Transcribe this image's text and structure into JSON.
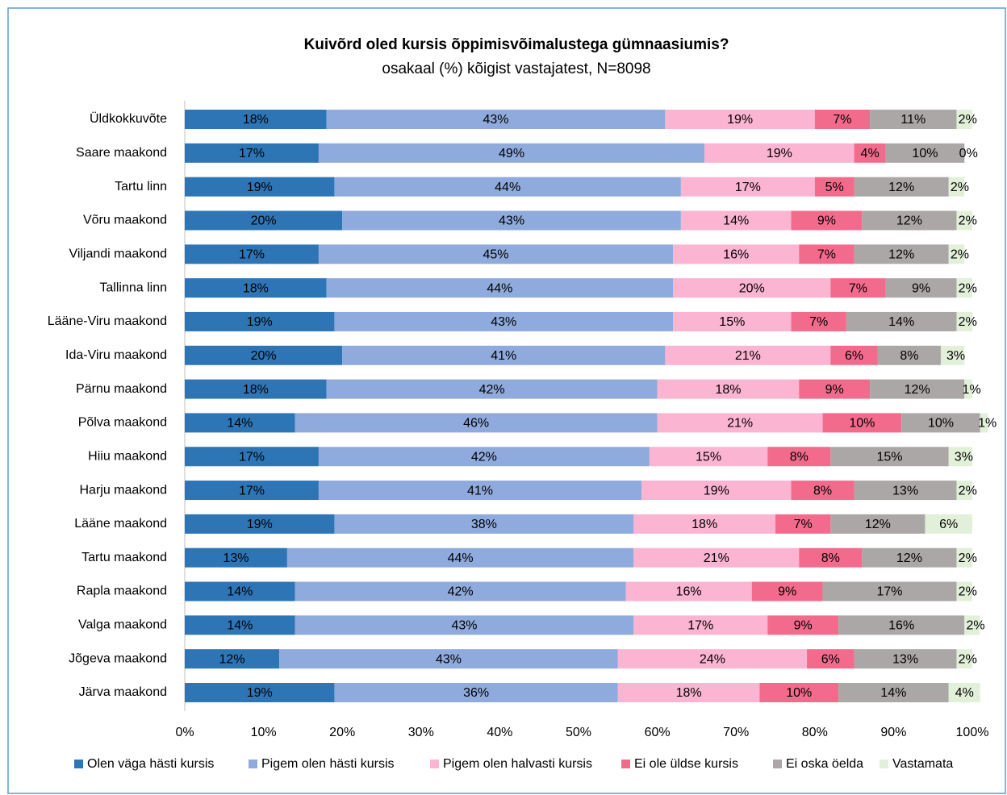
{
  "chart_data": {
    "type": "stacked_bar_horizontal",
    "title": "Kuivõrd oled kursis õppimisvõimalustega gümnaasiumis?",
    "subtitle": "osakaal (%) kõigist vastajatest, N=8098",
    "categories": [
      "Üldkokkuvõte",
      "Saare maakond",
      "Tartu linn",
      "Võru maakond",
      "Viljandi maakond",
      "Tallinna linn",
      "Lääne-Viru maakond",
      "Ida-Viru maakond",
      "Pärnu maakond",
      "Põlva maakond",
      "Hiiu maakond",
      "Harju maakond",
      "Lääne maakond",
      "Tartu maakond",
      "Rapla maakond",
      "Valga maakond",
      "Jõgeva maakond",
      "Järva maakond"
    ],
    "series": [
      {
        "name": "Olen väga hästi kursis",
        "color": "#2e75b6",
        "label_color": "#ffffff",
        "values": [
          18,
          17,
          19,
          20,
          17,
          18,
          19,
          20,
          18,
          14,
          17,
          17,
          19,
          13,
          14,
          14,
          12,
          19
        ],
        "value_labels": [
          "18%",
          "17%",
          "19%",
          "20%",
          "17%",
          "18%",
          "19%",
          "20%",
          "18%",
          "14%",
          "17%",
          "17%",
          "19%",
          "13%",
          "14%",
          "14%",
          "12%",
          "19%"
        ]
      },
      {
        "name": "Pigem olen hästi kursis",
        "color": "#8faadc",
        "label_color": "#000000",
        "values": [
          43,
          49,
          44,
          43,
          45,
          44,
          43,
          41,
          42,
          46,
          42,
          41,
          38,
          44,
          42,
          43,
          43,
          36
        ],
        "value_labels": [
          "43%",
          "49%",
          "44%",
          "43%",
          "45%",
          "44%",
          "43%",
          "41%",
          "42%",
          "46%",
          "42%",
          "41%",
          "38%",
          "44%",
          "42%",
          "43%",
          "43%",
          "36%"
        ]
      },
      {
        "name": "Pigem olen halvasti kursis",
        "color": "#fbb4d1",
        "label_color": "#000000",
        "values": [
          19,
          19,
          17,
          14,
          16,
          20,
          15,
          21,
          18,
          21,
          15,
          19,
          18,
          21,
          16,
          17,
          24,
          18
        ],
        "value_labels": [
          "19%",
          "19%",
          "17%",
          "14%",
          "16%",
          "20%",
          "15%",
          "21%",
          "18%",
          "21%",
          "15%",
          "19%",
          "18%",
          "21%",
          "16%",
          "17%",
          "24%",
          "18%"
        ]
      },
      {
        "name": "Ei ole üldse kursis",
        "color": "#f26b8c",
        "label_color": "#000000",
        "values": [
          7,
          4,
          5,
          9,
          7,
          7,
          7,
          6,
          9,
          10,
          8,
          8,
          7,
          8,
          9,
          9,
          6,
          10
        ],
        "value_labels": [
          "7%",
          "4%",
          "5%",
          "9%",
          "7%",
          "7%",
          "7%",
          "6%",
          "9%",
          "10%",
          "8%",
          "8%",
          "7%",
          "8%",
          "9%",
          "9%",
          "6%",
          "10%"
        ]
      },
      {
        "name": "Ei oska öelda",
        "color": "#aca7a7",
        "label_color": "#000000",
        "values": [
          11,
          10,
          12,
          12,
          12,
          9,
          14,
          8,
          12,
          10,
          15,
          13,
          12,
          12,
          17,
          16,
          13,
          14
        ],
        "value_labels": [
          "11%",
          "10%",
          "12%",
          "12%",
          "12%",
          "9%",
          "14%",
          "8%",
          "12%",
          "10%",
          "15%",
          "13%",
          "12%",
          "12%",
          "17%",
          "16%",
          "13%",
          "14%"
        ]
      },
      {
        "name": "Vastamata",
        "color": "#e2f0d9",
        "label_color": "#000000",
        "values": [
          2,
          0,
          2,
          2,
          2,
          2,
          2,
          3,
          1,
          1,
          3,
          2,
          6,
          2,
          2,
          2,
          2,
          4
        ],
        "value_labels": [
          "2%",
          "0%",
          "2%",
          "2%",
          "2%",
          "2%",
          "2%",
          "3%",
          "1%",
          "1%",
          "3%",
          "2%",
          "6%",
          "2%",
          "2%",
          "2%",
          "2%",
          "4%"
        ]
      }
    ],
    "xlim": [
      0,
      100
    ],
    "xticks": [
      {
        "value": 0,
        "label": "0%"
      },
      {
        "value": 10,
        "label": "10%"
      },
      {
        "value": 20,
        "label": "20%"
      },
      {
        "value": 30,
        "label": "30%"
      },
      {
        "value": 40,
        "label": "40%"
      },
      {
        "value": 50,
        "label": "50%"
      },
      {
        "value": 60,
        "label": "60%"
      },
      {
        "value": 70,
        "label": "70%"
      },
      {
        "value": 80,
        "label": "80%"
      },
      {
        "value": 90,
        "label": "90%"
      },
      {
        "value": 100,
        "label": "100%"
      }
    ],
    "legend": "bottom"
  }
}
